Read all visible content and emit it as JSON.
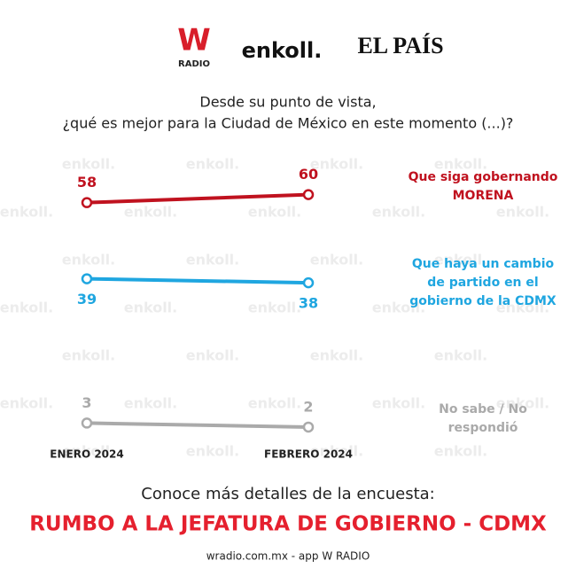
{
  "header": {
    "logos": [
      "W",
      "RADIO",
      "enkoll.",
      "EL PAÍS"
    ]
  },
  "watermark": "enkoll.",
  "chart_data": {
    "type": "line",
    "title": [
      "Desde su punto de vista,",
      "¿qué es mejor para la Ciudad de México en este momento (...)?"
    ],
    "categories": [
      "ENERO 2024",
      "FEBRERO 2024"
    ],
    "series": [
      {
        "name": "Que siga gobernando MORENA",
        "color": "#c0121f",
        "values": [
          58,
          60
        ]
      },
      {
        "name": "Que haya un cambio de partido en el gobierno de la CDMX",
        "color": "#1fa6e0",
        "values": [
          39,
          38
        ]
      },
      {
        "name": "No sabe / No respondió",
        "color": "#aaaaaa",
        "values": [
          3,
          2
        ]
      }
    ],
    "ylim": [
      0,
      65
    ]
  },
  "footer": {
    "intro": "Conoce más detalles de la encuesta:",
    "headline": "RUMBO A LA JEFATURA DE GOBIERNO - CDMX",
    "source": "wradio.com.mx - app W RADIO"
  }
}
